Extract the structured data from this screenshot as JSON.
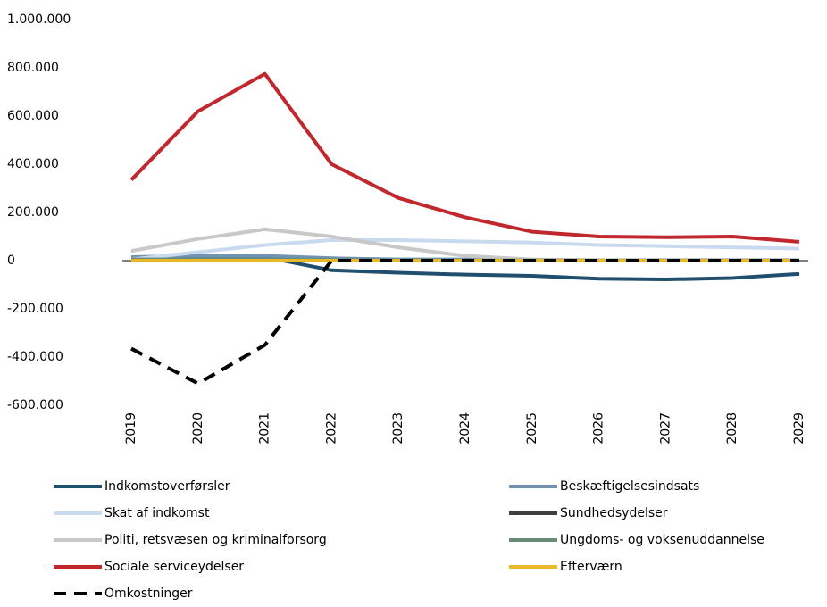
{
  "chart_data": {
    "type": "line",
    "categories": [
      "2019",
      "2020",
      "2021",
      "2022",
      "2023",
      "2024",
      "2025",
      "2026",
      "2027",
      "2028",
      "2029"
    ],
    "ylim": [
      -600000,
      1000000
    ],
    "yticks": [
      {
        "value": -600000,
        "label": "-600.000"
      },
      {
        "value": -400000,
        "label": "-400.000"
      },
      {
        "value": -200000,
        "label": "-200.000"
      },
      0,
      {
        "value": 200000,
        "label": "200.000"
      },
      {
        "value": 400000,
        "label": "400.000"
      },
      {
        "value": 600000,
        "label": "600.000"
      },
      {
        "value": 800000,
        "label": "800.000"
      },
      {
        "value": 1000000,
        "label": "1.000.000"
      }
    ],
    "series": [
      {
        "name": "Indkomstoverførsler",
        "color": "#1f4e6e",
        "values": [
          10000,
          15000,
          15000,
          -40000,
          -50000,
          -58000,
          -63000,
          -75000,
          -78000,
          -72000,
          -55000
        ]
      },
      {
        "name": "Beskæftigelsesindsats",
        "color": "#6f93b5",
        "values": [
          15000,
          20000,
          20000,
          10000,
          5000,
          5000,
          3000,
          2000,
          2000,
          2000,
          2000
        ]
      },
      {
        "name": "Skat af indkomst",
        "color": "#c9daf0",
        "values": [
          5000,
          35000,
          65000,
          85000,
          85000,
          80000,
          75000,
          65000,
          60000,
          55000,
          50000
        ]
      },
      {
        "name": "Sundhedsydelser",
        "color": "#404040",
        "values": [
          0,
          0,
          0,
          0,
          0,
          0,
          0,
          0,
          0,
          0,
          0
        ]
      },
      {
        "name": "Politi, retsvæsen og kriminalforsorg",
        "color": "#c8c8c8",
        "values": [
          40000,
          90000,
          130000,
          100000,
          55000,
          20000,
          5000,
          2000,
          0,
          0,
          0
        ]
      },
      {
        "name": "Ungdoms- og voksenuddannelse",
        "color": "#6a8a78",
        "values": [
          5000,
          5000,
          5000,
          3000,
          2000,
          1000,
          1000,
          1000,
          1000,
          1000,
          1000
        ]
      },
      {
        "name": "Sociale serviceydelser",
        "color": "#c0282e",
        "values": [
          335000,
          620000,
          775000,
          400000,
          260000,
          180000,
          120000,
          100000,
          97000,
          100000,
          78000
        ]
      },
      {
        "name": "Efterværn",
        "color": "#e6b82a",
        "values": [
          0,
          0,
          0,
          0,
          0,
          0,
          0,
          0,
          0,
          0,
          0
        ]
      },
      {
        "name": "Omkostninger",
        "color": "#000000",
        "dashed": true,
        "values": [
          -365000,
          -510000,
          -350000,
          0,
          0,
          0,
          0,
          0,
          0,
          0,
          0
        ]
      }
    ]
  }
}
